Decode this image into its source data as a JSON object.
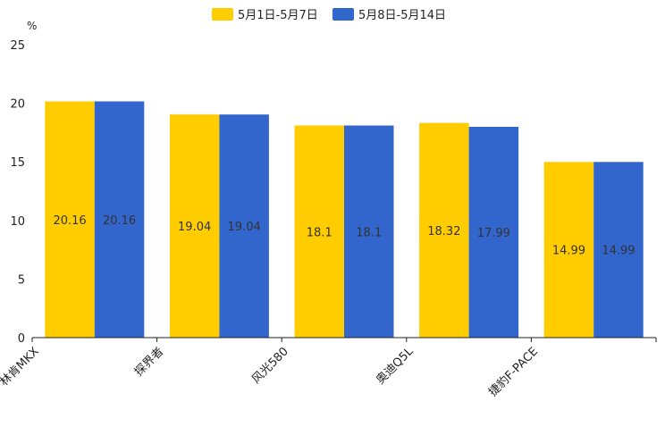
{
  "chart_data": {
    "type": "bar",
    "title": "",
    "xlabel": "",
    "ylabel": "%",
    "ylim": [
      0,
      25
    ],
    "yticks": [
      0,
      5,
      10,
      15,
      20,
      25
    ],
    "categories": [
      "林肯MKX",
      "探界者",
      "风光580",
      "奥迪Q5L",
      "捷豹F-PACE"
    ],
    "series": [
      {
        "name": "5月1日-5月7日",
        "color": "#FFCC00",
        "values": [
          20.16,
          19.04,
          18.1,
          18.32,
          14.99
        ]
      },
      {
        "name": "5月8日-5月14日",
        "color": "#3366CC",
        "values": [
          20.16,
          19.04,
          18.1,
          17.99,
          14.99
        ]
      }
    ],
    "legend": "top-center",
    "grid": false
  }
}
